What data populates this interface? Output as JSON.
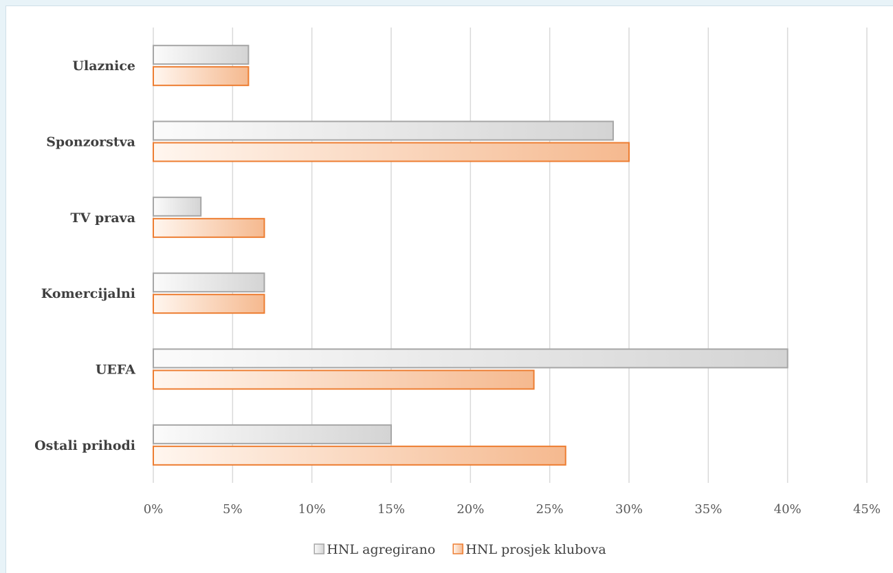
{
  "chart_data": {
    "type": "bar",
    "orientation": "horizontal",
    "categories": [
      "Ulaznice",
      "Sponzorstva",
      "TV prava",
      "Komercijalni",
      "UEFA",
      "Ostali prihodi"
    ],
    "series": [
      {
        "name": "HNL agregirano",
        "values": [
          0.06,
          0.29,
          0.03,
          0.07,
          0.4,
          0.15
        ],
        "color": "#a6a6a6",
        "fill_light": "#fbfbfb",
        "fill_dark": "#d4d4d4"
      },
      {
        "name": "HNL prosjek klubova",
        "values": [
          0.06,
          0.3,
          0.07,
          0.07,
          0.24,
          0.26
        ],
        "color": "#ed7d31",
        "fill_light": "#fff6ef",
        "fill_dark": "#f5b98f"
      }
    ],
    "x_ticks": [
      "0%",
      "5%",
      "10%",
      "15%",
      "20%",
      "25%",
      "30%",
      "35%",
      "40%",
      "45%"
    ],
    "xlim": [
      0,
      0.45
    ],
    "grid": "vertical",
    "legend": "bottom",
    "title": "",
    "xlabel": "",
    "ylabel": ""
  }
}
